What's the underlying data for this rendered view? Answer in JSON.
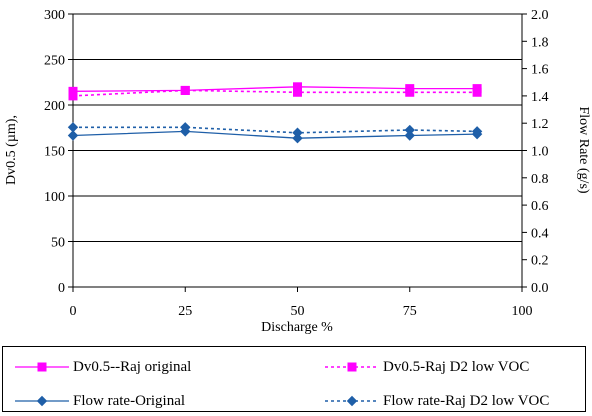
{
  "chart_data": {
    "type": "line",
    "title": "",
    "xlabel": "Discharge %",
    "ylabel": "Dv0.5 (µm),",
    "y2label": "Flow Rate (g/s)",
    "xlim": [
      0,
      100
    ],
    "ylim": [
      0,
      300
    ],
    "y2lim": [
      0,
      2.0
    ],
    "x_ticks": [
      0,
      25,
      50,
      75,
      100
    ],
    "y_ticks": [
      0,
      50,
      100,
      150,
      200,
      250,
      300
    ],
    "y2_ticks": [
      "0.0",
      "0.2",
      "0.4",
      "0.6",
      "0.8",
      "1.0",
      "1.2",
      "1.4",
      "1.6",
      "1.8",
      "2.0"
    ],
    "grid": "horizontal major lines on left axis",
    "legend_position": "bottom",
    "series": [
      {
        "name": "Dv0.5--Raj original",
        "axis": "left",
        "color": "#ff00ff",
        "style": "solid",
        "marker": "square",
        "x": [
          0,
          25,
          50,
          75,
          90
        ],
        "y": [
          215,
          216,
          220,
          218,
          218
        ]
      },
      {
        "name": "Dv0.5-Raj D2 low VOC",
        "axis": "left",
        "color": "#ff00ff",
        "style": "dashed",
        "marker": "square",
        "x": [
          0,
          25,
          50,
          75,
          90
        ],
        "y": [
          210,
          216,
          214,
          214,
          214
        ]
      },
      {
        "name": "Flow rate-Original",
        "axis": "right",
        "color": "#1f5fa8",
        "style": "solid",
        "marker": "diamond",
        "x": [
          0,
          25,
          50,
          75,
          90
        ],
        "y": [
          1.11,
          1.14,
          1.09,
          1.11,
          1.12
        ]
      },
      {
        "name": "Flow rate-Raj D2 low VOC",
        "axis": "right",
        "color": "#1f5fa8",
        "style": "dashed",
        "marker": "diamond",
        "x": [
          0,
          25,
          50,
          75,
          90
        ],
        "y": [
          1.17,
          1.17,
          1.13,
          1.15,
          1.14
        ]
      }
    ]
  }
}
